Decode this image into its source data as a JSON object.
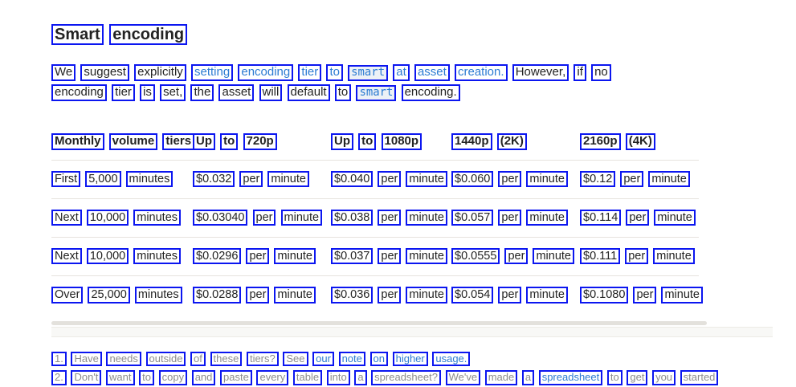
{
  "colors": {
    "box-blue": "#0b16f0",
    "link-blue": "#2b7bd2",
    "text-dark": "#232323",
    "text-gray": "#8c8c8c",
    "divider": "#e6e3de",
    "thumb": "#e3e1dc"
  },
  "page": {
    "title": "Smart encoding",
    "intro_segments": [
      {
        "text": "We suggest explicitly",
        "style": "plain"
      },
      {
        "text": "setting encoding tier to",
        "style": "link"
      },
      {
        "text": "smart",
        "style": "code"
      },
      {
        "text": "at asset creation.",
        "style": "link"
      },
      {
        "text": "However, if no encoding tier is set, the asset will default to",
        "style": "plain"
      },
      {
        "text": "smart",
        "style": "code"
      },
      {
        "text": "encoding.",
        "style": "plain"
      }
    ]
  },
  "table": {
    "headers": [
      "Monthly volume tiers",
      "Up to 720p",
      "Up to 1080p",
      "1440p (2K)",
      "2160p (4K)"
    ],
    "rows": [
      [
        "First 5,000 minutes",
        "$0.032 per minute",
        "$0.040 per minute",
        "$0.060 per minute",
        "$0.12 per minute"
      ],
      [
        "Next 10,000 minutes",
        "$0.03040 per minute",
        "$0.038 per minute",
        "$0.057 per minute",
        "$0.114 per minute"
      ],
      [
        "Next 10,000 minutes",
        "$0.0296 per minute",
        "$0.037 per minute",
        "$0.0555 per minute",
        "$0.111 per minute"
      ],
      [
        "Over 25,000 minutes",
        "$0.0288 per minute",
        "$0.036 per minute",
        "$0.054 per minute",
        "$0.1080 per minute"
      ]
    ]
  },
  "footnotes": [
    {
      "segments": [
        {
          "text": "1. Have needs outside of these tiers? See",
          "style": "plain"
        },
        {
          "text": "our note on higher usage.",
          "style": "link"
        }
      ]
    },
    {
      "segments": [
        {
          "text": "2. Don't want to copy and paste every table into a spreadsheet? We've made a",
          "style": "plain"
        },
        {
          "text": "spreadsheet",
          "style": "link"
        },
        {
          "text": "to get you started",
          "style": "plain"
        }
      ]
    }
  ]
}
